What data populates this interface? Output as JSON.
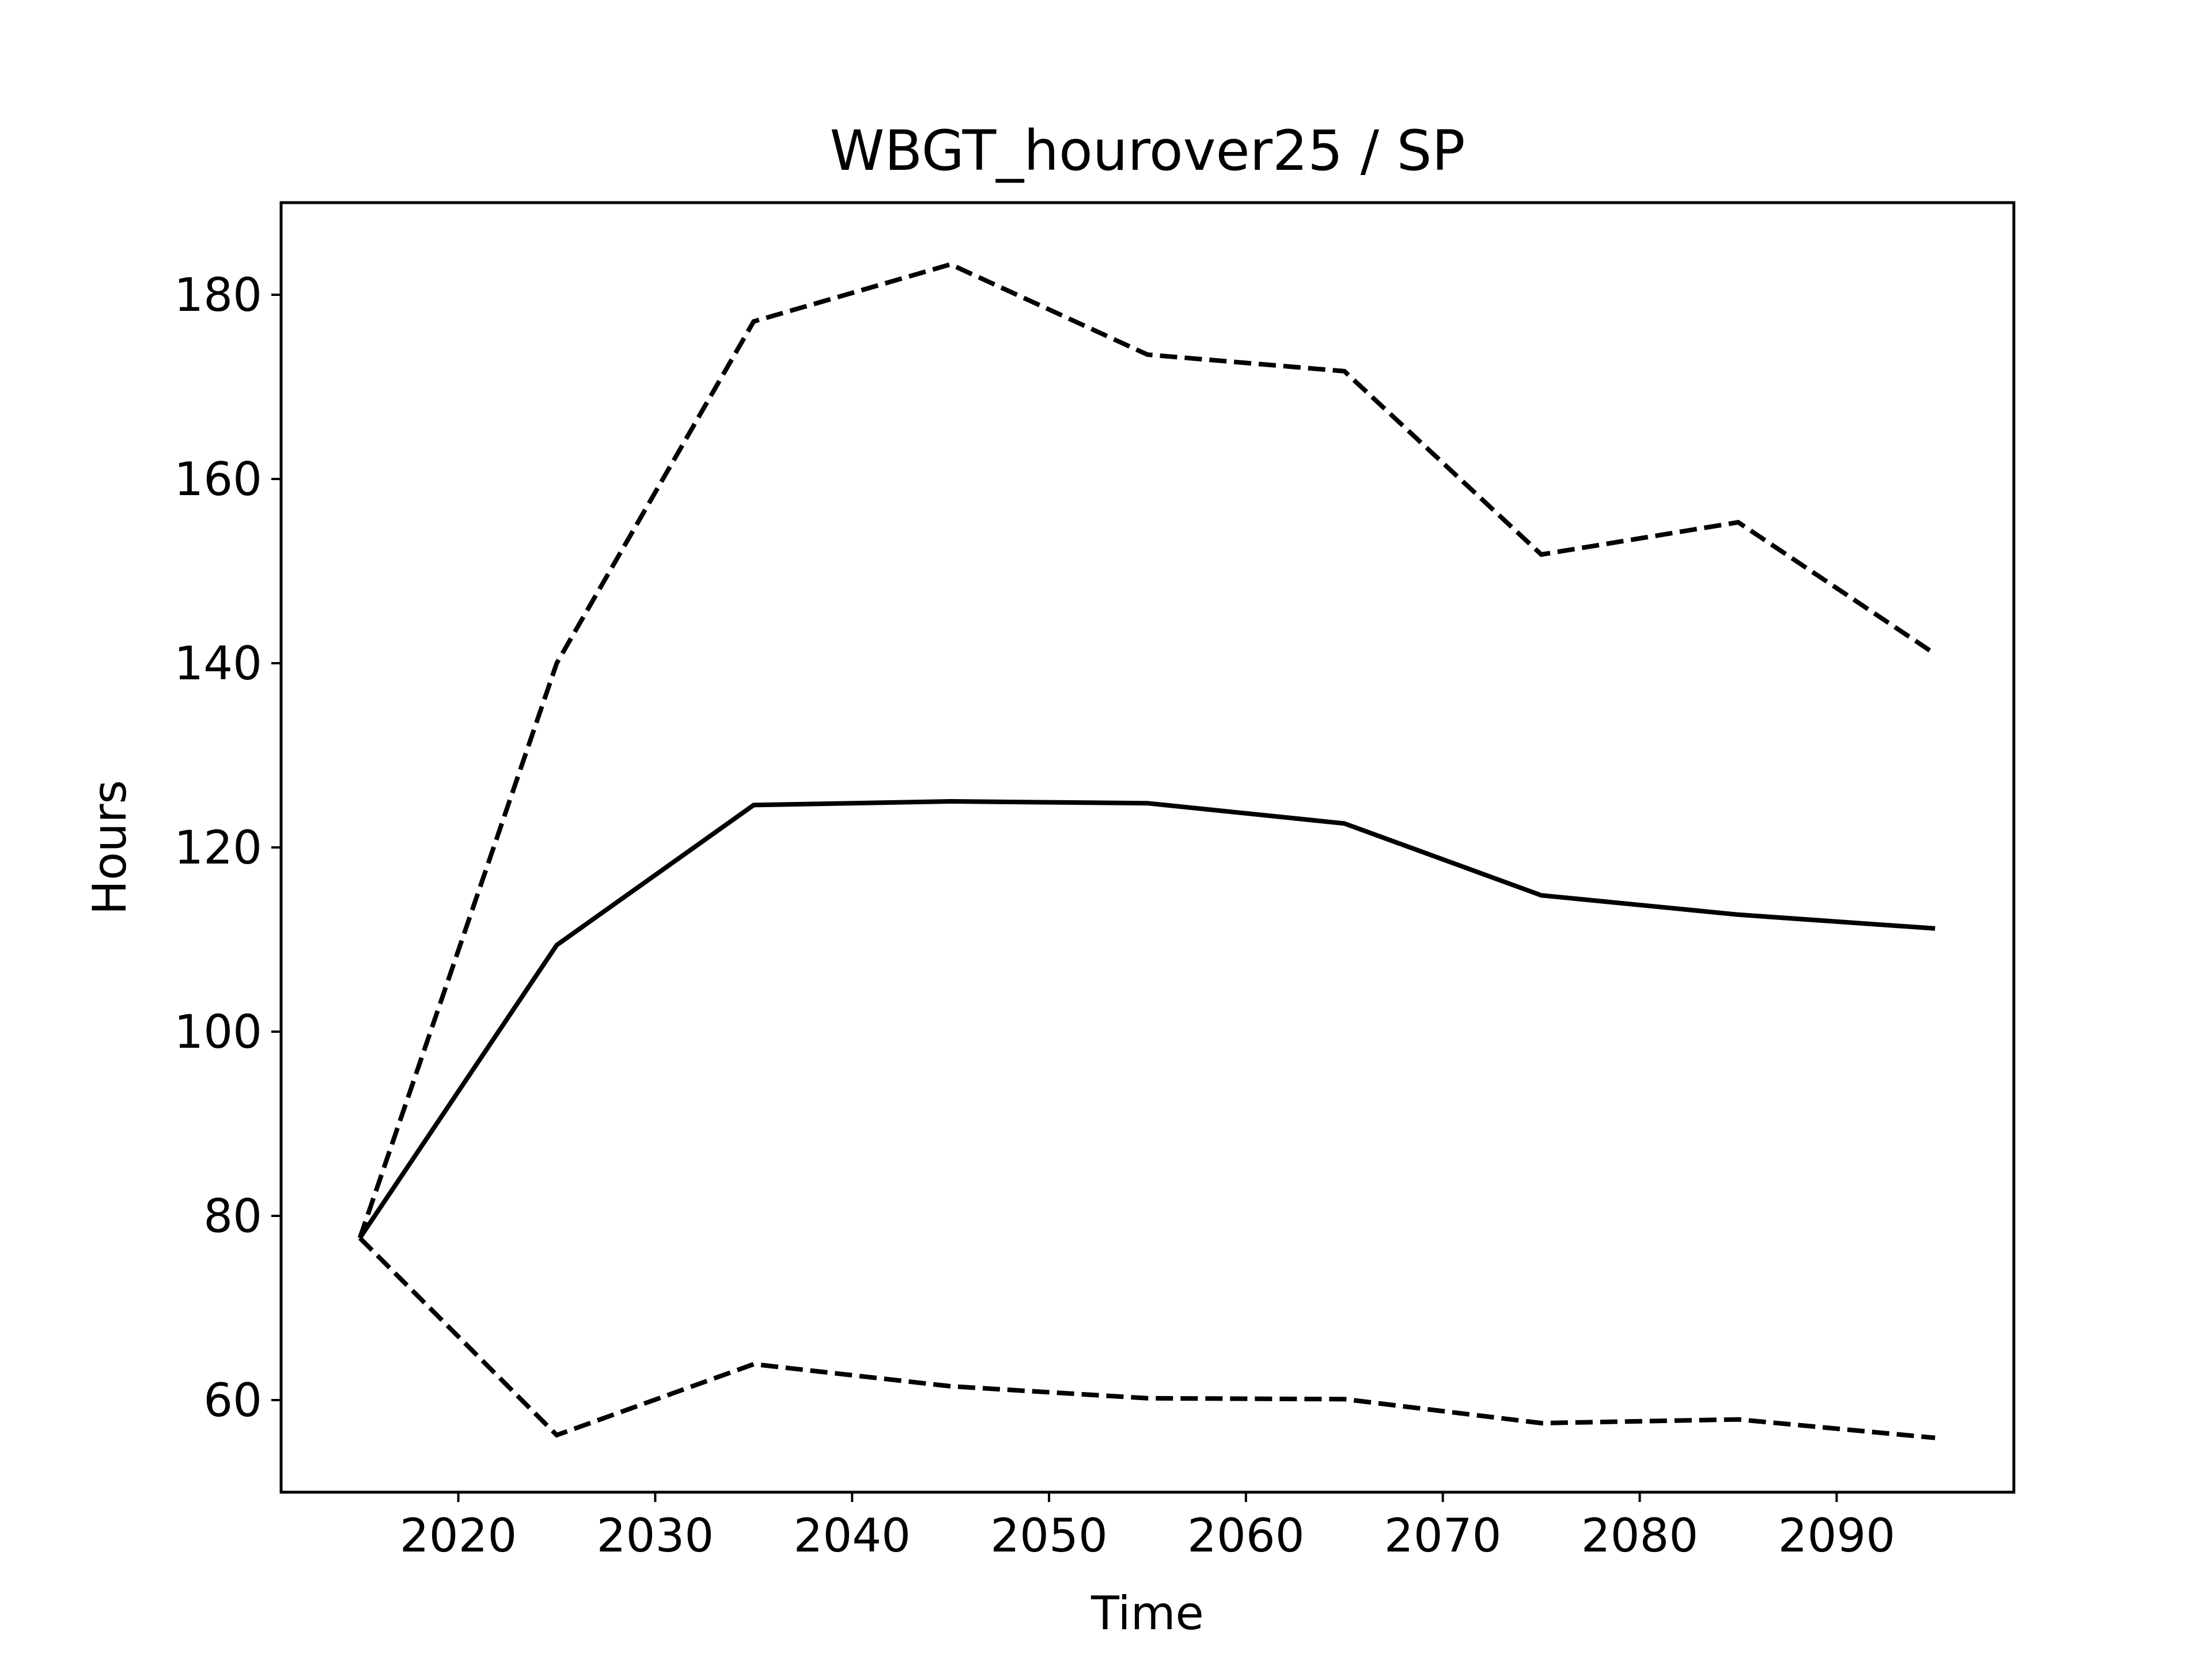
{
  "chart_data": {
    "type": "line",
    "title": "WBGT_hourover25 / SP",
    "xlabel": "Time",
    "ylabel": "Hours",
    "xlim": [
      2011,
      2099
    ],
    "ylim": [
      50,
      190
    ],
    "xticks": [
      2020,
      2030,
      2040,
      2050,
      2060,
      2070,
      2080,
      2090
    ],
    "yticks": [
      60,
      80,
      100,
      120,
      140,
      160,
      180
    ],
    "grid": false,
    "x": [
      2015,
      2025,
      2035,
      2045,
      2055,
      2065,
      2075,
      2085,
      2095
    ],
    "series": [
      {
        "style": "solid",
        "color": "#000000",
        "values": [
          77.6,
          109.4,
          124.6,
          125.0,
          124.8,
          122.6,
          114.8,
          112.7,
          111.2
        ]
      },
      {
        "style": "dashed",
        "color": "#000000",
        "values": [
          77.6,
          140.0,
          177.1,
          183.3,
          173.5,
          171.7,
          151.8,
          155.3,
          141.0
        ]
      },
      {
        "style": "dashed",
        "color": "#000000",
        "values": [
          77.6,
          56.2,
          63.9,
          61.5,
          60.2,
          60.1,
          57.5,
          57.9,
          55.9
        ]
      }
    ]
  }
}
